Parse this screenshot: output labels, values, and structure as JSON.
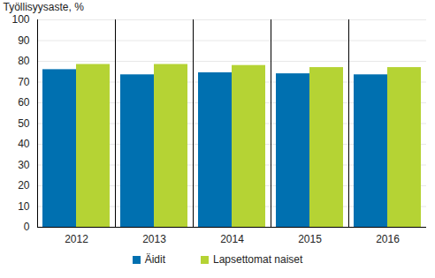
{
  "chart_data": {
    "type": "bar",
    "y_label": "Työllisyysaste, %",
    "categories": [
      "2012",
      "2013",
      "2014",
      "2015",
      "2016"
    ],
    "series": [
      {
        "name": "Äidit",
        "color": "#0070b0",
        "values": [
          76,
          73.5,
          74.5,
          74,
          73.5
        ]
      },
      {
        "name": "Lapsettomat naiset",
        "color": "#b5d334",
        "values": [
          78.5,
          78.5,
          78,
          77,
          77
        ]
      }
    ],
    "ylim": [
      0,
      100
    ],
    "yticks": [
      0,
      10,
      20,
      30,
      40,
      50,
      60,
      70,
      80,
      90,
      100
    ],
    "grid": true,
    "legend": "bottom"
  }
}
